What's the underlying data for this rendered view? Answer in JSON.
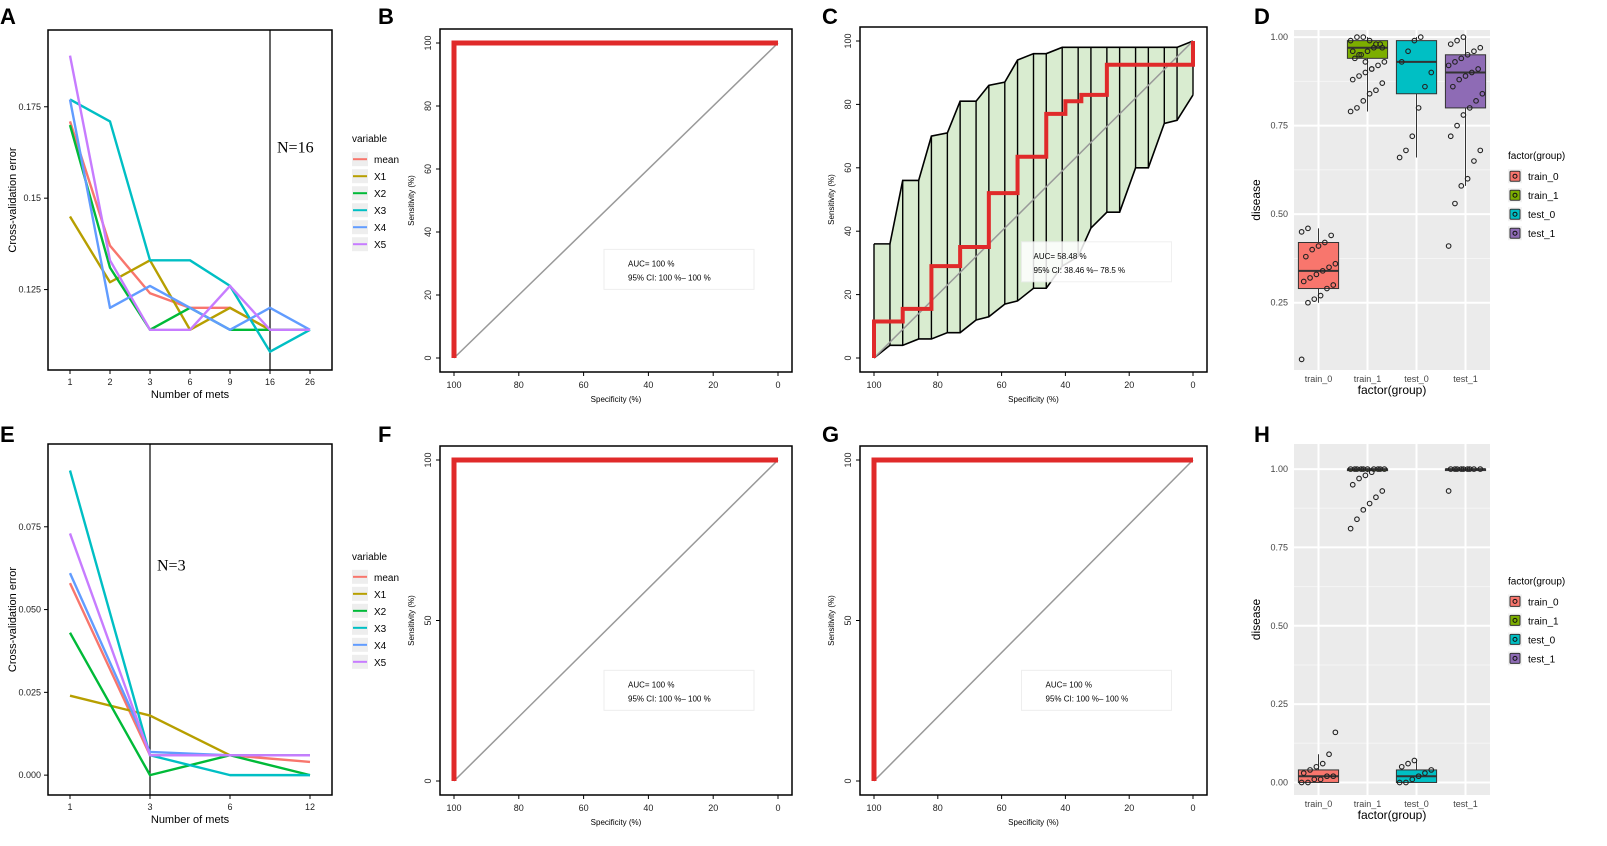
{
  "chart_data": [
    {
      "id": "A",
      "type": "line",
      "panel_label": "A",
      "xlabel": "Number of mets",
      "ylabel": "Cross-validation error",
      "categories": [
        "1",
        "2",
        "3",
        "6",
        "9",
        "16",
        "26"
      ],
      "yticks": [
        0.125,
        0.15,
        0.175
      ],
      "ylim": [
        0.103,
        0.196
      ],
      "legend_title": "variable",
      "vline_at": "16",
      "annotation": "N=16",
      "series": [
        {
          "name": "mean",
          "color": "#F8766D",
          "values": [
            0.171,
            0.137,
            0.124,
            0.12,
            0.12,
            0.114,
            0.114
          ]
        },
        {
          "name": "X1",
          "color": "#B79F00",
          "values": [
            0.145,
            0.127,
            0.133,
            0.114,
            0.12,
            0.114,
            0.114
          ]
        },
        {
          "name": "X2",
          "color": "#00BA38",
          "values": [
            0.17,
            0.131,
            0.114,
            0.12,
            0.114,
            0.114,
            0.114
          ]
        },
        {
          "name": "X3",
          "color": "#00BFC4",
          "values": [
            0.177,
            0.171,
            0.133,
            0.133,
            0.126,
            0.108,
            0.114
          ]
        },
        {
          "name": "X4",
          "color": "#619CFF",
          "values": [
            0.177,
            0.12,
            0.126,
            0.12,
            0.114,
            0.12,
            0.114
          ]
        },
        {
          "name": "X5",
          "color": "#C77CFF",
          "values": [
            0.189,
            0.133,
            0.114,
            0.114,
            0.126,
            0.114,
            0.114
          ]
        }
      ]
    },
    {
      "id": "B",
      "type": "line",
      "panel_label": "B",
      "subtype": "roc",
      "xlabel": "Specificity (%)",
      "ylabel": "Sensitivity (%)",
      "xticks": [
        100,
        80,
        60,
        40,
        20,
        0
      ],
      "yticks": [
        0,
        20,
        40,
        60,
        80,
        100
      ],
      "roc": [
        [
          100,
          0
        ],
        [
          100,
          100
        ],
        [
          0,
          100
        ]
      ],
      "auc_text": "AUC= 100 %",
      "ci_text": "95% CI: 100 %– 100 %"
    },
    {
      "id": "C",
      "type": "line",
      "panel_label": "C",
      "subtype": "roc_ci",
      "xlabel": "Specificity (%)",
      "ylabel": "Sensitivity (%)",
      "xticks": [
        100,
        80,
        60,
        40,
        20,
        0
      ],
      "yticks": [
        0,
        20,
        40,
        60,
        80,
        100
      ],
      "roc": [
        [
          100,
          0
        ],
        [
          100,
          11.5
        ],
        [
          91,
          11.5
        ],
        [
          91,
          15.5
        ],
        [
          82,
          15.5
        ],
        [
          82,
          29
        ],
        [
          73,
          29
        ],
        [
          73,
          35
        ],
        [
          64,
          35
        ],
        [
          64,
          52
        ],
        [
          55,
          52
        ],
        [
          55,
          63.5
        ],
        [
          46,
          63.5
        ],
        [
          46,
          77
        ],
        [
          40,
          77
        ],
        [
          40,
          81
        ],
        [
          35,
          81
        ],
        [
          35,
          83
        ],
        [
          27,
          83
        ],
        [
          27,
          92.5
        ],
        [
          0,
          92.5
        ],
        [
          0,
          100
        ]
      ],
      "ci_x": [
        100,
        95,
        91,
        86,
        82,
        77,
        73,
        68,
        64,
        59,
        55,
        50,
        46,
        41,
        36,
        32,
        27,
        23,
        18,
        14,
        9,
        5,
        0
      ],
      "ci_upper": [
        36,
        36,
        56,
        56,
        70,
        71,
        81,
        81,
        86,
        87,
        94,
        96,
        96,
        98,
        98,
        98,
        98,
        98,
        98,
        98,
        98,
        98,
        100
      ],
      "ci_lower": [
        0,
        4,
        4,
        6,
        6,
        8,
        8,
        12,
        13,
        17,
        18,
        22,
        22,
        29,
        32,
        41,
        46,
        46,
        60,
        60,
        74,
        75,
        83
      ],
      "auc_text": "AUC= 58.48 %",
      "ci_text": "95% CI: 38.46 %– 78.5 %"
    },
    {
      "id": "D",
      "type": "box",
      "panel_label": "D",
      "xlabel": "factor(group)",
      "ylabel": "disease",
      "categories": [
        "train_0",
        "train_1",
        "test_0",
        "test_1"
      ],
      "yticks": [
        0.25,
        0.5,
        0.75,
        1.0
      ],
      "ytick_labels": [
        "0.25",
        "0.50",
        "0.75",
        "1.00"
      ],
      "ylim": [
        0.06,
        1.02
      ],
      "legend_title": "factor(group)",
      "boxes": [
        {
          "name": "train_0",
          "color": "#F8766D",
          "q1": 0.29,
          "median": 0.34,
          "q3": 0.42,
          "low": 0.25,
          "high": 0.46,
          "points": [
            0.09,
            0.25,
            0.26,
            0.27,
            0.29,
            0.3,
            0.31,
            0.32,
            0.33,
            0.34,
            0.35,
            0.36,
            0.38,
            0.4,
            0.41,
            0.42,
            0.44,
            0.45,
            0.46
          ]
        },
        {
          "name": "train_1",
          "color": "#7CAE00",
          "q1": 0.94,
          "median": 0.97,
          "q3": 0.99,
          "low": 0.79,
          "high": 1.0,
          "points": [
            0.79,
            0.8,
            0.82,
            0.84,
            0.85,
            0.87,
            0.88,
            0.89,
            0.9,
            0.91,
            0.92,
            0.93,
            0.94,
            0.95,
            0.96,
            0.97,
            0.98,
            0.99,
            1.0,
            1.0,
            0.99,
            0.98,
            0.97,
            0.96,
            0.95,
            0.93,
            0.91
          ]
        },
        {
          "name": "test_0",
          "color": "#00BFC4",
          "q1": 0.84,
          "median": 0.93,
          "q3": 0.99,
          "low": 0.66,
          "high": 1.0,
          "points": [
            0.66,
            0.68,
            0.72,
            0.8,
            0.86,
            0.9,
            0.93,
            0.96,
            0.99,
            1.0
          ]
        },
        {
          "name": "test_1",
          "color": "#8E6BB5",
          "q1": 0.8,
          "median": 0.9,
          "q3": 0.95,
          "low": 0.58,
          "high": 1.0,
          "points": [
            0.41,
            0.53,
            0.58,
            0.6,
            0.65,
            0.68,
            0.72,
            0.75,
            0.78,
            0.8,
            0.82,
            0.84,
            0.86,
            0.88,
            0.89,
            0.9,
            0.91,
            0.92,
            0.93,
            0.94,
            0.95,
            0.96,
            0.97,
            0.98,
            0.99,
            1.0
          ]
        }
      ]
    },
    {
      "id": "E",
      "type": "line",
      "panel_label": "E",
      "xlabel": "Number of mets",
      "ylabel": "Cross-validation error",
      "categories": [
        "1",
        "3",
        "6",
        "12"
      ],
      "yticks": [
        0.0,
        0.025,
        0.05,
        0.075
      ],
      "ytick_labels": [
        "0.000",
        "0.025",
        "0.050",
        "0.075"
      ],
      "ylim": [
        -0.006,
        0.1
      ],
      "legend_title": "variable",
      "vline_at": "3",
      "annotation": "N=3",
      "series": [
        {
          "name": "mean",
          "color": "#F8766D",
          "values": [
            0.058,
            0.006,
            0.006,
            0.004
          ]
        },
        {
          "name": "X1",
          "color": "#B79F00",
          "values": [
            0.024,
            0.018,
            0.006,
            0.006
          ]
        },
        {
          "name": "X2",
          "color": "#00BA38",
          "values": [
            0.043,
            0.0,
            0.006,
            0.0
          ]
        },
        {
          "name": "X3",
          "color": "#00BFC4",
          "values": [
            0.092,
            0.006,
            0.0,
            0.0
          ]
        },
        {
          "name": "X4",
          "color": "#619CFF",
          "values": [
            0.061,
            0.007,
            0.006,
            0.006
          ]
        },
        {
          "name": "X5",
          "color": "#C77CFF",
          "values": [
            0.073,
            0.006,
            0.006,
            0.006
          ]
        }
      ]
    },
    {
      "id": "F",
      "type": "line",
      "panel_label": "F",
      "subtype": "roc",
      "xlabel": "Specificity (%)",
      "ylabel": "Sensitivity (%)",
      "xticks": [
        100,
        80,
        60,
        40,
        20,
        0
      ],
      "yticks": [
        0,
        50,
        100
      ],
      "roc": [
        [
          100,
          0
        ],
        [
          100,
          100
        ],
        [
          0,
          100
        ]
      ],
      "auc_text": "AUC= 100 %",
      "ci_text": "95% CI: 100 %– 100 %"
    },
    {
      "id": "G",
      "type": "line",
      "panel_label": "G",
      "subtype": "roc",
      "xlabel": "Specificity (%)",
      "ylabel": "Sensitivity (%)",
      "xticks": [
        100,
        80,
        60,
        40,
        20,
        0
      ],
      "yticks": [
        0,
        50,
        100
      ],
      "roc": [
        [
          100,
          0
        ],
        [
          100,
          100
        ],
        [
          0,
          100
        ]
      ],
      "auc_text": "AUC= 100 %",
      "ci_text": "95% CI: 100 %– 100 %"
    },
    {
      "id": "H",
      "type": "box",
      "panel_label": "H",
      "xlabel": "factor(group)",
      "ylabel": "disease",
      "categories": [
        "train_0",
        "train_1",
        "test_0",
        "test_1"
      ],
      "yticks": [
        0.0,
        0.25,
        0.5,
        0.75,
        1.0
      ],
      "ytick_labels": [
        "0.00",
        "0.25",
        "0.50",
        "0.75",
        "1.00"
      ],
      "ylim": [
        -0.04,
        1.08
      ],
      "legend_title": "factor(group)",
      "boxes": [
        {
          "name": "train_0",
          "color": "#F8766D",
          "q1": 0.0,
          "median": 0.02,
          "q3": 0.04,
          "low": 0.0,
          "high": 0.09,
          "points": [
            0.0,
            0.0,
            0.01,
            0.01,
            0.02,
            0.02,
            0.03,
            0.04,
            0.05,
            0.06,
            0.09,
            0.16
          ]
        },
        {
          "name": "train_1",
          "color": "#7CAE00",
          "q1": 0.995,
          "median": 1.0,
          "q3": 1.0,
          "low": 0.99,
          "high": 1.0,
          "points": [
            0.81,
            0.84,
            0.87,
            0.89,
            0.91,
            0.93,
            0.95,
            0.97,
            0.98,
            0.99,
            1.0,
            1.0,
            1.0,
            1.0,
            1.0,
            1.0,
            1.0,
            1.0,
            1.0,
            1.0
          ]
        },
        {
          "name": "test_0",
          "color": "#00BFC4",
          "q1": 0.0,
          "median": 0.02,
          "q3": 0.04,
          "low": 0.0,
          "high": 0.07,
          "points": [
            0.0,
            0.0,
            0.01,
            0.02,
            0.03,
            0.04,
            0.05,
            0.06,
            0.07
          ]
        },
        {
          "name": "test_1",
          "color": "#8E6BB5",
          "q1": 1.0,
          "median": 1.0,
          "q3": 1.0,
          "low": 1.0,
          "high": 1.0,
          "points": [
            0.93,
            1.0,
            1.0,
            1.0,
            1.0,
            1.0,
            1.0,
            1.0,
            1.0,
            1.0
          ]
        }
      ]
    }
  ]
}
